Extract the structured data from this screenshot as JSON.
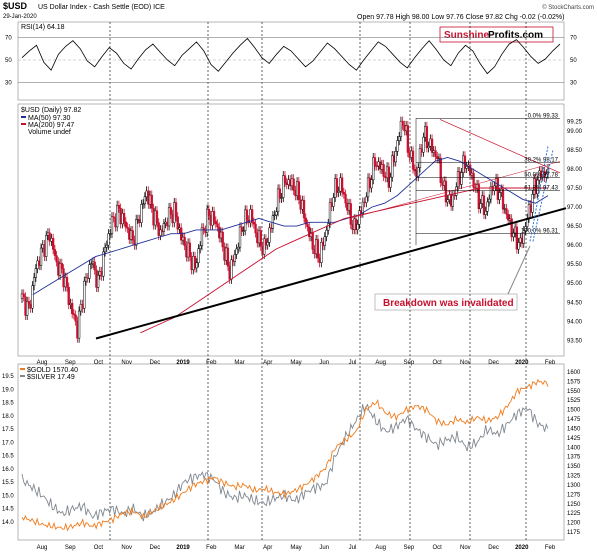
{
  "header": {
    "symbol": "$USD",
    "name": "US Dollar Index - Cash Settle (EOD) ICE",
    "date": "29-Jan-2020",
    "ohlc": "Open 97.78  High 98.00  Low 97.76  Close 97.82  Chg -0.02 (-0.02%)",
    "watermark": "© StockCharts.com"
  },
  "brand": {
    "part1": "Sunshine",
    "part2": "Profits.com",
    "color_red": "#c8102e"
  },
  "annotation": {
    "text": "Breakdown was invalidated",
    "color": "#c8102e"
  },
  "colors": {
    "price_up": "#000000",
    "price_down": "#c8102e",
    "ma50": "#1f2e9a",
    "ma200": "#c8102e",
    "gold": "#f07a1a",
    "silver": "#808890"
  },
  "chart_data": [
    {
      "type": "line",
      "title": "RSI(14) 64.18",
      "y_ticks": [
        30,
        50,
        70
      ],
      "ylim": [
        20,
        80
      ],
      "series": [
        {
          "name": "RSI(14)",
          "values": [
            52,
            58,
            63,
            48,
            41,
            55,
            62,
            67,
            60,
            49,
            44,
            53,
            61,
            56,
            47,
            42,
            51,
            59,
            64,
            57,
            50,
            45,
            54,
            60,
            66,
            58,
            46,
            40,
            48,
            56,
            63,
            69,
            61,
            52,
            47,
            55,
            62,
            58,
            51,
            44,
            49,
            57,
            65,
            60,
            53,
            46,
            41,
            50,
            58,
            66,
            62,
            55,
            48,
            43,
            52,
            60,
            67,
            59,
            50,
            45,
            56,
            63,
            58,
            47,
            38,
            44,
            55,
            64,
            68,
            61,
            53,
            47,
            51,
            58,
            64
          ]
        }
      ]
    },
    {
      "type": "line",
      "title": "$USD (Daily) 97.82",
      "legend": [
        "MA(50) 97.30",
        "MA(200) 97.47",
        "Volume undef"
      ],
      "x_ticks": [
        "Aug",
        "Sep",
        "Oct",
        "Nov",
        "Dec",
        "2019",
        "Feb",
        "Mar",
        "Apr",
        "May",
        "Jun",
        "Jul",
        "Aug",
        "Sep",
        "Oct",
        "Nov",
        "Dec",
        "2020",
        "Feb"
      ],
      "y_ticks": [
        93.5,
        94.0,
        94.5,
        95.0,
        95.5,
        96.0,
        96.5,
        97.0,
        97.5,
        98.0,
        98.5,
        99.0,
        99.25
      ],
      "ylim": [
        93.3,
        99.6
      ],
      "fib_labels": [
        "0.0% 99.33",
        "38.2% 98.17",
        "50.0% 97.78",
        "61.8% 97.43",
        "100.0% 96.31"
      ],
      "series": [
        {
          "name": "$USD",
          "values": [
            94.6,
            94.3,
            95.4,
            95.9,
            96.3,
            95.5,
            95.2,
            94.4,
            93.8,
            94.9,
            95.6,
            95.0,
            95.9,
            96.6,
            96.9,
            96.5,
            96.1,
            96.8,
            97.4,
            96.8,
            96.3,
            96.7,
            96.9,
            96.2,
            95.8,
            95.4,
            96.3,
            96.8,
            96.6,
            96.0,
            95.3,
            95.9,
            96.6,
            96.8,
            96.2,
            95.9,
            96.5,
            97.2,
            97.7,
            97.6,
            97.3,
            96.6,
            96.0,
            95.7,
            96.4,
            97.4,
            97.6,
            97.0,
            96.4,
            96.9,
            97.5,
            98.2,
            98.0,
            97.7,
            98.5,
            99.3,
            98.4,
            97.8,
            98.9,
            98.6,
            98.3,
            97.4,
            97.1,
            97.7,
            98.2,
            97.8,
            97.2,
            96.9,
            97.6,
            97.4,
            96.8,
            96.3,
            96.0,
            96.7,
            97.5,
            97.9,
            97.82
          ]
        },
        {
          "name": "MA(50)",
          "values": [
            94.7,
            94.9,
            95.1,
            95.3,
            95.5,
            95.7,
            95.8,
            95.9,
            96.0,
            96.1,
            96.2,
            96.3,
            96.3,
            96.4,
            96.4,
            96.4,
            96.5,
            96.6,
            96.7,
            96.6,
            96.5,
            96.5,
            96.6,
            96.6,
            96.6,
            96.7,
            96.8,
            97.0,
            97.1,
            97.3,
            97.6,
            97.9,
            98.2,
            98.3,
            98.2,
            98.0,
            97.8,
            97.6,
            97.4,
            97.2,
            97.1,
            97.3
          ]
        },
        {
          "name": "MA(200)",
          "values": [
            93.7,
            93.9,
            94.1,
            94.4,
            94.7,
            95.0,
            95.3,
            95.6,
            95.9,
            96.1,
            96.3,
            96.5,
            96.7,
            96.8,
            96.9,
            97.0,
            97.1,
            97.2,
            97.3,
            97.4,
            97.5,
            97.5,
            97.5,
            97.5,
            97.5
          ]
        }
      ]
    },
    {
      "type": "line",
      "title": "$GOLD 1570.40",
      "legend": [
        "$SILVER 17.49"
      ],
      "x_ticks": [
        "Aug",
        "Sep",
        "Oct",
        "Nov",
        "Dec",
        "2019",
        "Feb",
        "Mar",
        "Apr",
        "May",
        "Jun",
        "Jul",
        "Aug",
        "Sep",
        "Oct",
        "Nov",
        "Dec",
        "2020",
        "Feb"
      ],
      "y_ticks_left": [
        14.0,
        14.5,
        15.0,
        15.5,
        16.0,
        16.5,
        17.0,
        17.5,
        18.0,
        18.5,
        19.0,
        19.5
      ],
      "y_ticks_right": [
        1175,
        1200,
        1225,
        1250,
        1275,
        1300,
        1325,
        1350,
        1375,
        1400,
        1425,
        1450,
        1475,
        1500,
        1525,
        1550,
        1575,
        1600
      ],
      "series": [
        {
          "name": "$GOLD",
          "values": [
            1215,
            1205,
            1195,
            1190,
            1185,
            1190,
            1200,
            1190,
            1200,
            1210,
            1225,
            1230,
            1215,
            1230,
            1245,
            1260,
            1280,
            1300,
            1310,
            1320,
            1305,
            1295,
            1300,
            1285,
            1290,
            1280,
            1275,
            1285,
            1300,
            1320,
            1345,
            1400,
            1420,
            1440,
            1500,
            1520,
            1490,
            1480,
            1500,
            1510,
            1500,
            1470,
            1460,
            1475,
            1465,
            1480,
            1470,
            1480,
            1510,
            1550,
            1560,
            1575,
            1570
          ]
        },
        {
          "name": "$SILVER",
          "values": [
            15.6,
            15.3,
            15.0,
            14.6,
            14.3,
            14.5,
            14.6,
            14.2,
            14.4,
            14.5,
            14.3,
            14.5,
            14.2,
            14.4,
            14.7,
            15.0,
            15.5,
            15.7,
            15.8,
            15.6,
            15.1,
            14.9,
            15.0,
            14.8,
            14.7,
            14.9,
            15.0,
            14.8,
            15.1,
            15.3,
            15.4,
            16.5,
            17.2,
            17.8,
            18.4,
            17.8,
            17.4,
            17.6,
            17.9,
            17.5,
            17.2,
            16.9,
            17.1,
            17.2,
            16.8,
            17.0,
            17.5,
            17.3,
            17.7,
            18.1,
            18.3,
            17.7,
            17.49
          ]
        }
      ]
    }
  ]
}
